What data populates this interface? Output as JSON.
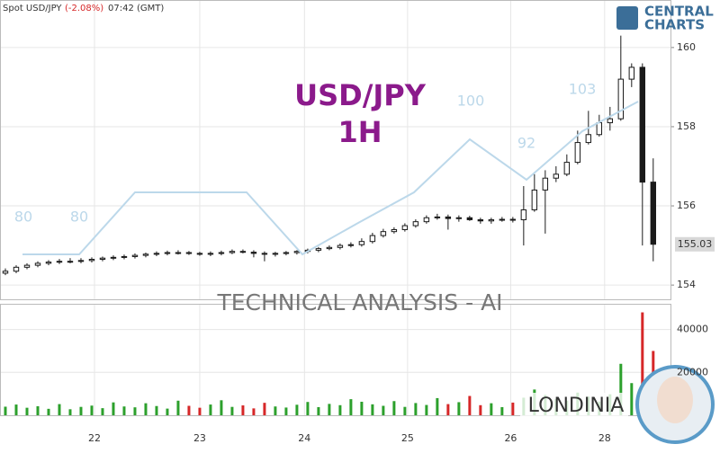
{
  "chart_data": {
    "type": "candlestick",
    "symbol_label": "Spot USD/JPY",
    "change_label": "(-2.08%)",
    "time_label": "07:42 (GMT)",
    "title": "USD/JPY",
    "subtitle": "1H",
    "watermark": "TECHNICAL  ANALYSIS - AI",
    "brand": "LONDINIA",
    "logo_top": "CENTRAL",
    "logo_bottom": "CHARTS",
    "sentiment_labels": [
      "80",
      "80",
      "100",
      "92",
      "103"
    ],
    "xlim": [
      -0.5,
      61.6
    ],
    "xticks": [
      {
        "value": 8.25,
        "label": "22"
      },
      {
        "value": 18,
        "label": "23"
      },
      {
        "value": 27.7,
        "label": "24"
      },
      {
        "value": 37.25,
        "label": "25"
      },
      {
        "value": 46.8,
        "label": "26"
      },
      {
        "value": 55.5,
        "label": "28"
      }
    ],
    "ylim": [
      153.64,
      161.2
    ],
    "yticks": [
      154,
      156,
      158,
      160
    ],
    "candle_color": "#1a1a1a",
    "open": [
      154.3,
      154.35,
      154.45,
      154.5,
      154.55,
      154.58,
      154.6,
      154.6,
      154.62,
      154.65,
      154.68,
      154.7,
      154.72,
      154.75,
      154.78,
      154.8,
      154.82,
      154.82,
      154.8,
      154.78,
      154.8,
      154.82,
      154.85,
      154.83,
      154.8,
      154.78,
      154.8,
      154.82,
      154.85,
      154.88,
      154.92,
      154.95,
      155.0,
      155.02,
      155.1,
      155.25,
      155.35,
      155.4,
      155.5,
      155.6,
      155.7,
      155.72,
      155.68,
      155.7,
      155.65,
      155.62,
      155.65,
      155.66,
      155.65,
      155.9,
      156.4,
      156.7,
      156.8,
      157.1,
      157.6,
      157.8,
      158.1,
      158.2,
      159.2,
      159.5,
      156.6
    ],
    "high": [
      154.42,
      154.5,
      154.55,
      154.6,
      154.63,
      154.66,
      154.68,
      154.68,
      154.7,
      154.72,
      154.75,
      154.77,
      154.8,
      154.82,
      154.85,
      154.87,
      154.88,
      154.86,
      154.84,
      154.85,
      154.87,
      154.9,
      154.9,
      154.88,
      154.85,
      154.84,
      154.86,
      154.88,
      154.92,
      154.96,
      155.0,
      155.05,
      155.08,
      155.18,
      155.32,
      155.42,
      155.46,
      155.56,
      155.66,
      155.76,
      155.8,
      155.78,
      155.76,
      155.75,
      155.7,
      155.7,
      155.72,
      155.72,
      156.5,
      156.8,
      156.9,
      157.0,
      157.3,
      157.9,
      158.4,
      158.3,
      158.5,
      160.3,
      159.6,
      159.6,
      157.2
    ],
    "low": [
      154.25,
      154.3,
      154.4,
      154.45,
      154.5,
      154.53,
      154.55,
      154.55,
      154.57,
      154.6,
      154.63,
      154.65,
      154.67,
      154.7,
      154.73,
      154.75,
      154.77,
      154.76,
      154.74,
      154.73,
      154.75,
      154.78,
      154.8,
      154.7,
      154.6,
      154.72,
      154.75,
      154.77,
      154.8,
      154.83,
      154.88,
      154.9,
      154.95,
      154.97,
      155.05,
      155.2,
      155.3,
      155.35,
      155.45,
      155.55,
      155.65,
      155.4,
      155.6,
      155.62,
      155.55,
      155.55,
      155.6,
      155.58,
      155.0,
      155.85,
      155.3,
      156.6,
      156.75,
      157.05,
      157.55,
      157.75,
      157.9,
      158.15,
      159.0,
      155.0,
      154.6
    ],
    "close": [
      154.35,
      154.45,
      154.5,
      154.55,
      154.58,
      154.6,
      154.6,
      154.62,
      154.65,
      154.68,
      154.7,
      154.72,
      154.75,
      154.78,
      154.8,
      154.82,
      154.82,
      154.8,
      154.78,
      154.8,
      154.82,
      154.85,
      154.83,
      154.8,
      154.78,
      154.8,
      154.82,
      154.85,
      154.88,
      154.92,
      154.95,
      155.0,
      155.02,
      155.1,
      155.25,
      155.35,
      155.4,
      155.5,
      155.6,
      155.7,
      155.72,
      155.68,
      155.7,
      155.65,
      155.62,
      155.65,
      155.66,
      155.65,
      155.9,
      156.4,
      156.7,
      156.8,
      157.1,
      157.6,
      157.8,
      158.1,
      158.2,
      159.2,
      159.5,
      156.6,
      155.03
    ],
    "volume": {
      "ylim": [
        0,
        52000
      ],
      "yticks": [
        20000,
        40000
      ],
      "up_color": "#2ca02c",
      "down_color": "#d62728",
      "values": [
        4000,
        5000,
        3500,
        4200,
        3000,
        5200,
        2800,
        3900,
        4500,
        3300,
        6000,
        4100,
        3700,
        5600,
        4300,
        3100,
        6800,
        4400,
        3500,
        5000,
        7000,
        3900,
        4600,
        3200,
        5800,
        4100,
        3600,
        4900,
        6200,
        3800,
        5300,
        4700,
        7500,
        6300,
        5100,
        4400,
        6600,
        3900,
        5700,
        4800,
        8000,
        5200,
        6100,
        9000,
        4700,
        5600,
        3800,
        5900,
        8200,
        12000,
        9500,
        7600,
        6800,
        10500,
        8700,
        6400,
        9800,
        24000,
        15000,
        48000,
        30000
      ]
    }
  }
}
